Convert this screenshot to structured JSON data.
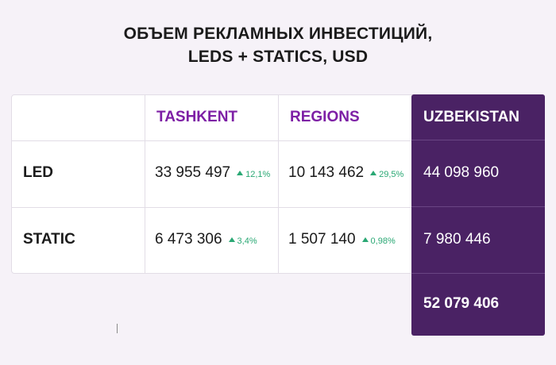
{
  "chart_data": {
    "type": "table",
    "title": [
      "ОБЪЕМ РЕКЛАМНЫХ ИНВЕСТИЦИЙ,",
      "LEDS + STATICS, USD"
    ],
    "columns": [
      "",
      "TASHKENT",
      "REGIONS",
      "UZBEKISTAN"
    ],
    "rows": [
      {
        "label": "LED",
        "tashkent": "33 955 497",
        "tashkent_change": "12,1%",
        "regions": "10 143 462",
        "regions_change": "29,5%",
        "uzbekistan": "44 098 960"
      },
      {
        "label": "STATIC",
        "tashkent": "6 473 306",
        "tashkent_change": "3,4%",
        "regions": "1 507 140",
        "regions_change": "0,98%",
        "uzbekistan": "7 980 446"
      }
    ],
    "total": "52 079 406",
    "colors": {
      "accent": "#7d1fa5",
      "highlight_column": "#4a2264",
      "positive_change": "#2aa874"
    }
  }
}
